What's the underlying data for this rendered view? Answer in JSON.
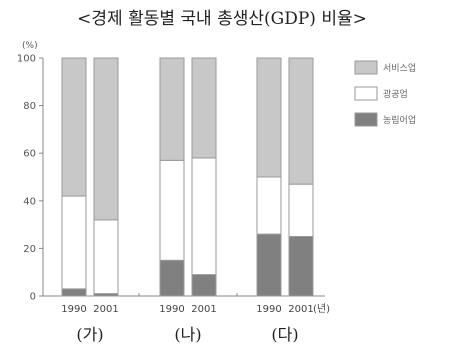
{
  "chart_data": {
    "type": "bar",
    "stacked": true,
    "title": "<경제 활동별 국내 총생산(GDP) 비율>",
    "ylabel": "(%)",
    "xlabel": "(년)",
    "ylim": [
      0,
      100
    ],
    "yticks": [
      0,
      20,
      40,
      60,
      80,
      100
    ],
    "legend_position": "top-right",
    "groups": [
      {
        "label": "(가)",
        "bars": [
          {
            "year": "1990",
            "values": {
              "농림어업": 3,
              "광공업": 39,
              "서비스업": 58
            }
          },
          {
            "year": "2001",
            "values": {
              "농림어업": 1,
              "광공업": 31,
              "서비스업": 68
            }
          }
        ]
      },
      {
        "label": "(나)",
        "bars": [
          {
            "year": "1990",
            "values": {
              "농림어업": 15,
              "광공업": 42,
              "서비스업": 43
            }
          },
          {
            "year": "2001",
            "values": {
              "농림어업": 9,
              "광공업": 49,
              "서비스업": 42
            }
          }
        ]
      },
      {
        "label": "(다)",
        "bars": [
          {
            "year": "1990",
            "values": {
              "농림어업": 26,
              "광공업": 24,
              "서비스업": 50
            }
          },
          {
            "year": "2001",
            "values": {
              "농림어업": 25,
              "광공업": 22,
              "서비스업": 53
            }
          }
        ]
      }
    ],
    "series": [
      {
        "name": "서비스업",
        "color": "#c8c8c8"
      },
      {
        "name": "광공업",
        "color": "#ffffff"
      },
      {
        "name": "농림어업",
        "color": "#808080"
      }
    ]
  }
}
